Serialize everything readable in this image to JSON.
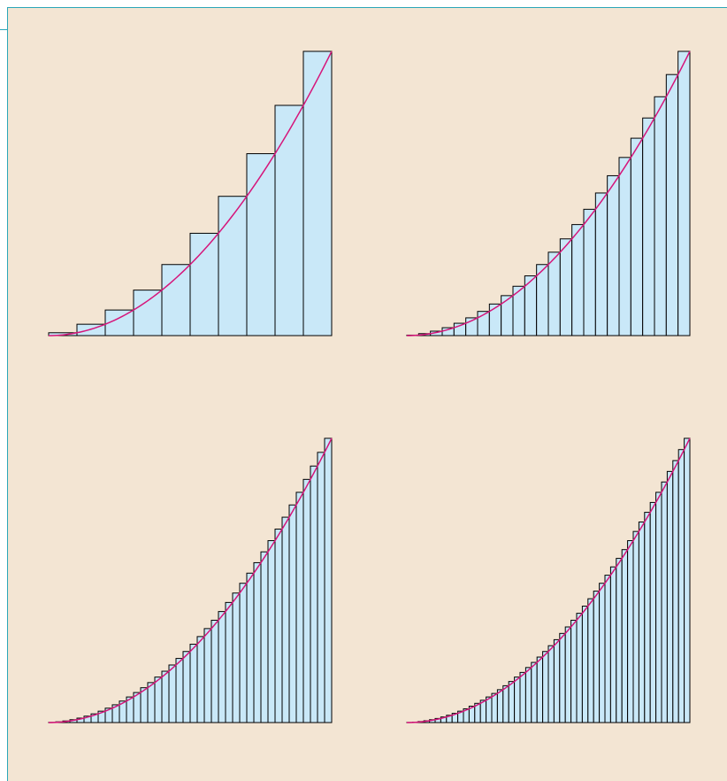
{
  "chart_data": [
    {
      "type": "riemann",
      "xlim": [
        0,
        1
      ],
      "ylim": [
        0,
        1
      ],
      "bar_color": "#c9e8f8",
      "curve_color": "#d6157a",
      "curve_exponent": 2,
      "values": [
        0.01,
        0.04,
        0.09,
        0.16,
        0.25,
        0.36,
        0.49,
        0.64,
        0.81,
        1
      ]
    },
    {
      "type": "riemann",
      "xlim": [
        0,
        1
      ],
      "ylim": [
        0,
        1
      ],
      "bar_color": "#c9e8f8",
      "curve_color": "#d6157a",
      "curve_exponent": 2,
      "values": [
        0.0017,
        0.0069,
        0.0156,
        0.0278,
        0.0434,
        0.0625,
        0.0851,
        0.1111,
        0.1406,
        0.1736,
        0.2101,
        0.25,
        0.2934,
        0.3403,
        0.3906,
        0.4444,
        0.5017,
        0.5625,
        0.6267,
        0.6944,
        0.7656,
        0.8403,
        0.9184,
        1
      ]
    },
    {
      "type": "riemann",
      "xlim": [
        0,
        1
      ],
      "ylim": [
        0,
        1
      ],
      "bar_color": "#c9e8f8",
      "curve_color": "#d6157a",
      "curve_exponent": 2,
      "values": [
        0.0006,
        0.0025,
        0.0056,
        0.01,
        0.0156,
        0.0225,
        0.0306,
        0.04,
        0.0506,
        0.0625,
        0.0756,
        0.09,
        0.1056,
        0.1225,
        0.1406,
        0.16,
        0.1806,
        0.2025,
        0.2256,
        0.25,
        0.2756,
        0.3025,
        0.3306,
        0.36,
        0.3906,
        0.4225,
        0.4556,
        0.49,
        0.5256,
        0.5625,
        0.6006,
        0.64,
        0.6806,
        0.7225,
        0.7656,
        0.81,
        0.8556,
        0.9025,
        0.9506,
        1
      ]
    },
    {
      "type": "riemann",
      "xlim": [
        0,
        1
      ],
      "ylim": [
        0,
        1
      ],
      "bar_color": "#c9e8f8",
      "curve_color": "#d6157a",
      "curve_exponent": 2,
      "values": [
        0.0004,
        0.0016,
        0.0036,
        0.0064,
        0.01,
        0.0144,
        0.0196,
        0.0256,
        0.0324,
        0.04,
        0.0484,
        0.0576,
        0.0676,
        0.0784,
        0.09,
        0.1024,
        0.1156,
        0.1296,
        0.1444,
        0.16,
        0.1764,
        0.1936,
        0.2116,
        0.2304,
        0.25,
        0.2704,
        0.2916,
        0.3136,
        0.3364,
        0.36,
        0.3844,
        0.4096,
        0.4356,
        0.4624,
        0.49,
        0.5184,
        0.5476,
        0.5776,
        0.6084,
        0.64,
        0.6724,
        0.7056,
        0.7396,
        0.7744,
        0.81,
        0.8464,
        0.8836,
        0.9216,
        0.9604,
        1
      ]
    }
  ]
}
